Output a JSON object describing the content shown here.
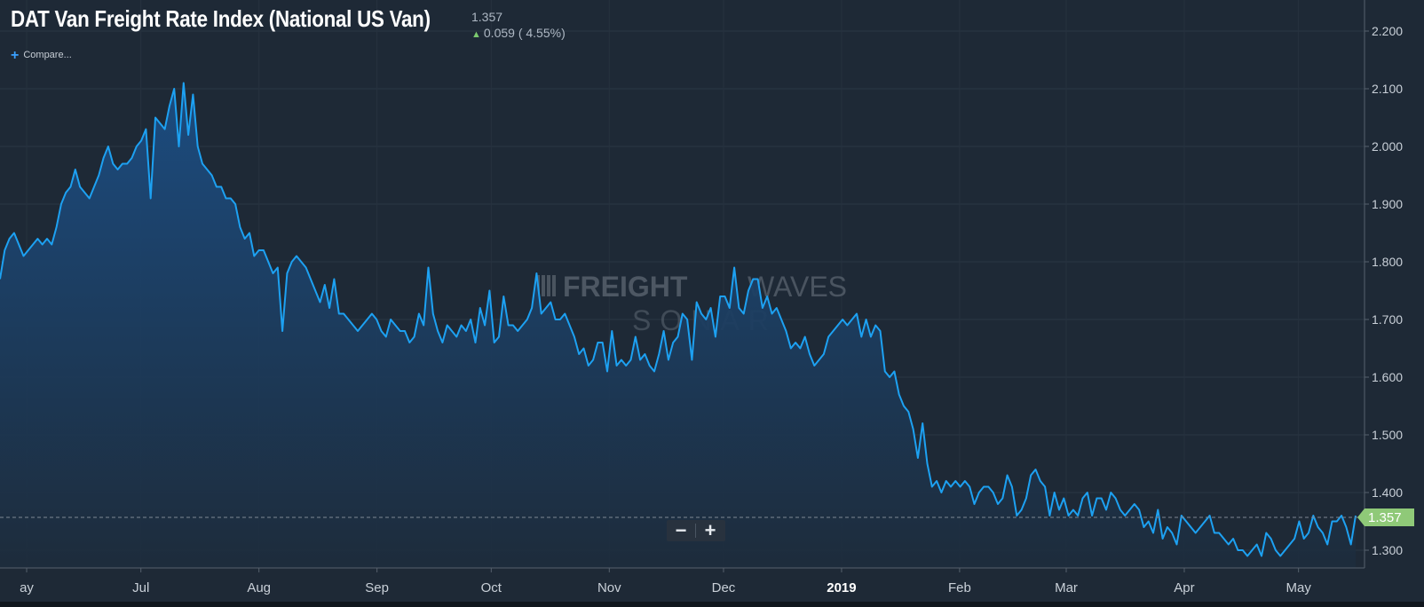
{
  "header": {
    "title": "DAT Van Freight Rate Index (National US Van)",
    "last_value": "1.357",
    "change": "0.059 ( 4.55%)",
    "change_direction": "up"
  },
  "compare_label": "Compare...",
  "watermark": {
    "brand_bold": "FREIGHT",
    "brand_light": "WAVES",
    "product": "SONAR"
  },
  "zoom": {
    "minus": "−",
    "plus": "+"
  },
  "colors": {
    "background": "#1e2936",
    "line": "#1da1f2",
    "fill_top": "#1b4e84",
    "price_badge": "#8fc978"
  },
  "chart_data": {
    "type": "area",
    "title": "DAT Van Freight Rate Index (National US Van)",
    "x_tick_labels": [
      "ay",
      "Jul",
      "Aug",
      "Sep",
      "Oct",
      "Nov",
      "Dec",
      "2019",
      "Feb",
      "Mar",
      "Apr",
      "May"
    ],
    "y_tick_labels": [
      "2.200",
      "2.100",
      "2.000",
      "1.900",
      "1.800",
      "1.700",
      "1.600",
      "1.500",
      "1.400",
      "1.300"
    ],
    "ylim": [
      1.25,
      2.22
    ],
    "grid": true,
    "current_value": 1.357,
    "series": [
      {
        "x_start": "2018-05-25",
        "x_end": "2019-05-16",
        "values": [
          1.77,
          1.82,
          1.84,
          1.85,
          1.83,
          1.81,
          1.82,
          1.83,
          1.84,
          1.83,
          1.84,
          1.83,
          1.86,
          1.9,
          1.92,
          1.93,
          1.96,
          1.93,
          1.92,
          1.91,
          1.93,
          1.95,
          1.98,
          2.0,
          1.97,
          1.96,
          1.97,
          1.97,
          1.98,
          2.0,
          2.01,
          2.03,
          1.91,
          2.05,
          2.04,
          2.03,
          2.07,
          2.1,
          2.0,
          2.11,
          2.02,
          2.09,
          2.0,
          1.97,
          1.96,
          1.95,
          1.93,
          1.93,
          1.91,
          1.91,
          1.9,
          1.86,
          1.84,
          1.85,
          1.81,
          1.82,
          1.82,
          1.8,
          1.78,
          1.79,
          1.68,
          1.78,
          1.8,
          1.81,
          1.8,
          1.79,
          1.77,
          1.75,
          1.73,
          1.76,
          1.72,
          1.77,
          1.71,
          1.71,
          1.7,
          1.69,
          1.68,
          1.69,
          1.7,
          1.71,
          1.7,
          1.68,
          1.67,
          1.7,
          1.69,
          1.68,
          1.68,
          1.66,
          1.67,
          1.71,
          1.69,
          1.79,
          1.71,
          1.68,
          1.66,
          1.69,
          1.68,
          1.67,
          1.69,
          1.68,
          1.7,
          1.66,
          1.72,
          1.69,
          1.75,
          1.66,
          1.67,
          1.74,
          1.69,
          1.69,
          1.68,
          1.69,
          1.7,
          1.72,
          1.78,
          1.71,
          1.72,
          1.73,
          1.7,
          1.7,
          1.71,
          1.69,
          1.67,
          1.64,
          1.65,
          1.62,
          1.63,
          1.66,
          1.66,
          1.61,
          1.68,
          1.62,
          1.63,
          1.62,
          1.63,
          1.67,
          1.63,
          1.64,
          1.62,
          1.61,
          1.64,
          1.68,
          1.63,
          1.66,
          1.67,
          1.71,
          1.7,
          1.63,
          1.73,
          1.71,
          1.7,
          1.72,
          1.67,
          1.74,
          1.74,
          1.72,
          1.79,
          1.72,
          1.71,
          1.75,
          1.77,
          1.77,
          1.72,
          1.74,
          1.71,
          1.72,
          1.7,
          1.68,
          1.65,
          1.66,
          1.65,
          1.67,
          1.64,
          1.62,
          1.63,
          1.64,
          1.67,
          1.68,
          1.69,
          1.7,
          1.69,
          1.7,
          1.71,
          1.67,
          1.7,
          1.67,
          1.69,
          1.68,
          1.61,
          1.6,
          1.61,
          1.57,
          1.55,
          1.54,
          1.51,
          1.46,
          1.52,
          1.45,
          1.41,
          1.42,
          1.4,
          1.42,
          1.41,
          1.42,
          1.41,
          1.42,
          1.41,
          1.38,
          1.4,
          1.41,
          1.41,
          1.4,
          1.38,
          1.39,
          1.43,
          1.41,
          1.36,
          1.37,
          1.39,
          1.43,
          1.44,
          1.42,
          1.41,
          1.36,
          1.4,
          1.37,
          1.39,
          1.36,
          1.37,
          1.36,
          1.39,
          1.4,
          1.36,
          1.39,
          1.39,
          1.37,
          1.4,
          1.39,
          1.37,
          1.36,
          1.37,
          1.38,
          1.37,
          1.34,
          1.35,
          1.33,
          1.37,
          1.32,
          1.34,
          1.33,
          1.31,
          1.36,
          1.35,
          1.34,
          1.33,
          1.34,
          1.35,
          1.36,
          1.33,
          1.33,
          1.32,
          1.31,
          1.32,
          1.3,
          1.3,
          1.29,
          1.3,
          1.31,
          1.29,
          1.33,
          1.32,
          1.3,
          1.29,
          1.3,
          1.31,
          1.32,
          1.35,
          1.32,
          1.33,
          1.36,
          1.34,
          1.33,
          1.31,
          1.35,
          1.35,
          1.36,
          1.34,
          1.31,
          1.36
        ]
      }
    ]
  }
}
